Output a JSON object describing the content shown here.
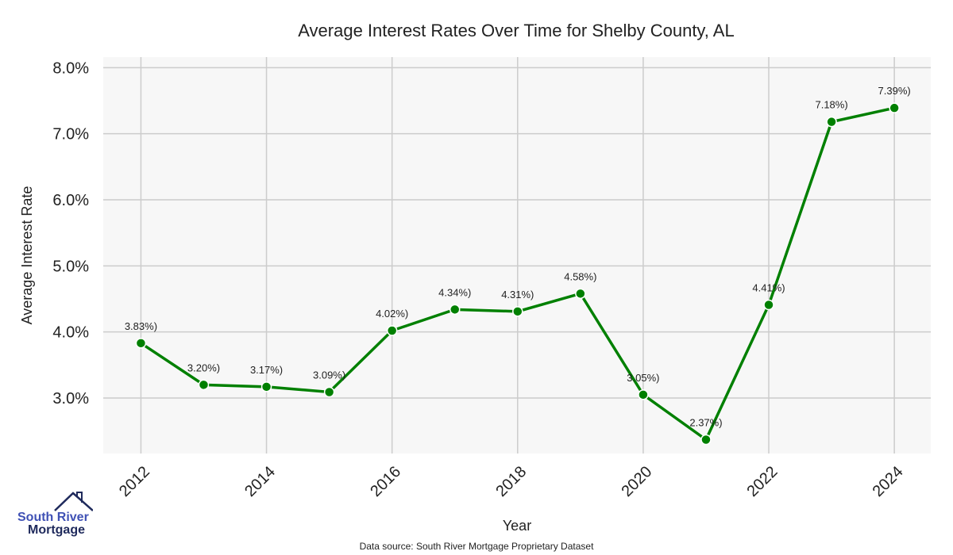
{
  "chart_data": {
    "type": "line",
    "title": "Average Interest Rates Over Time for Shelby County, AL",
    "xlabel": "Year",
    "ylabel": "Average Interest Rate",
    "x": [
      2012,
      2013,
      2014,
      2015,
      2016,
      2017,
      2018,
      2019,
      2020,
      2021,
      2022,
      2023,
      2024
    ],
    "values": [
      3.83,
      3.2,
      3.17,
      3.09,
      4.02,
      4.34,
      4.31,
      4.58,
      3.05,
      2.37,
      4.41,
      7.18,
      7.39
    ],
    "data_labels": [
      "3.83%)",
      "3.20%)",
      "3.17%)",
      "3.09%)",
      "4.02%)",
      "4.34%)",
      "4.31%)",
      "4.58%)",
      "3.05%)",
      "2.37%)",
      "4.41%)",
      "7.18%)",
      "7.39%)"
    ],
    "x_ticks": [
      "2012",
      "2014",
      "2016",
      "2018",
      "2020",
      "2022",
      "2024"
    ],
    "y_ticks": [
      "3.0%",
      "4.0%",
      "5.0%",
      "6.0%",
      "7.0%",
      "8.0%"
    ],
    "xlim": [
      2011.4,
      2024.58
    ],
    "ylim": [
      2.16,
      8.16
    ],
    "grid": true,
    "line_color": "#008000",
    "background": "#f7f7f7"
  },
  "logo": {
    "line1": "South River",
    "line2": "Mortgage"
  },
  "source": "Data source: South River Mortgage Proprietary Dataset"
}
